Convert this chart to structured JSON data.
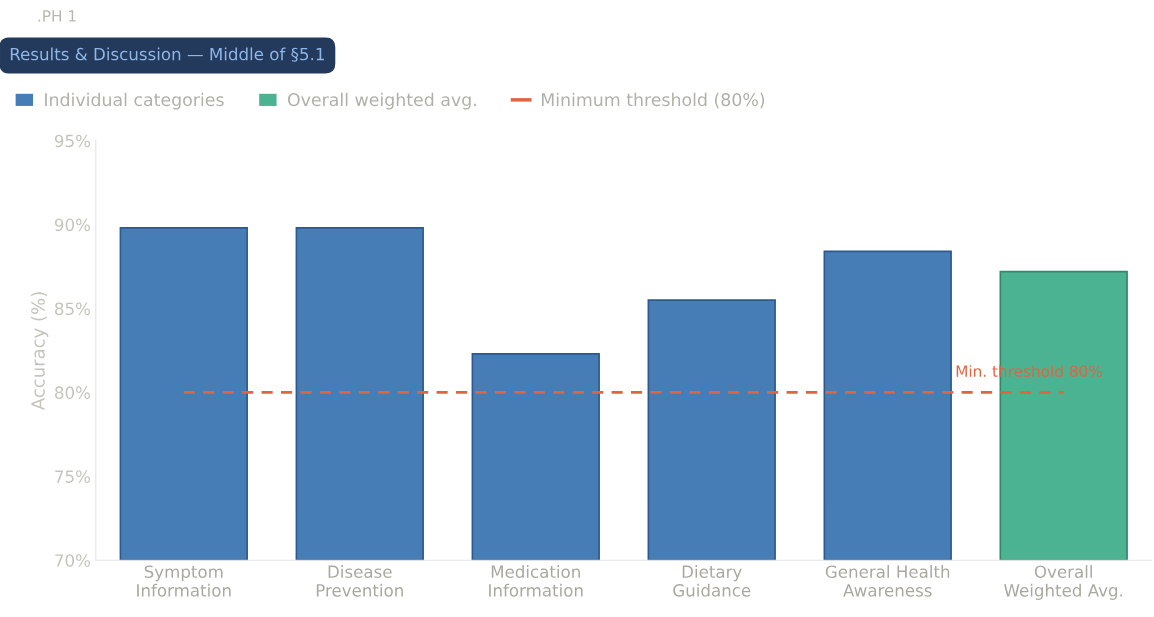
{
  "chart_data": {
    "type": "bar",
    "title": "Results & Discussion — Middle of §5.1",
    "annotations": [
      ".PH 1",
      {
        "text": "Min. threshold 80%",
        "x": "Overall\nWeighted Avg.",
        "y": 80
      }
    ],
    "ylabel": "Accuracy (%)",
    "categories": [
      "Symptom\nInformation",
      "Disease\nPrevention",
      "Medication\nInformation",
      "Dietary\nGuidance",
      "General Health\nAwareness",
      "Overall\nWeighted Avg."
    ],
    "series": [
      {
        "name": "Individual categories",
        "color": "#477db6",
        "values": [
          89.8,
          89.8,
          82.3,
          85.5,
          88.4,
          null
        ]
      },
      {
        "name": "Overall weighted avg.",
        "color": "#4bb391",
        "values": [
          null,
          null,
          null,
          null,
          null,
          87.2
        ]
      },
      {
        "name": "Minimum threshold (80%)",
        "type": "line",
        "color": "#e0643f",
        "line_style": "dashed",
        "values": [
          80,
          80,
          80,
          80,
          80,
          80
        ]
      }
    ],
    "ylim": [
      70,
      95
    ],
    "yticks": [
      {
        "value": 70,
        "label": "70%"
      },
      {
        "value": 75,
        "label": "75%"
      },
      {
        "value": 80,
        "label": "80%"
      },
      {
        "value": 85,
        "label": "85%"
      },
      {
        "value": 90,
        "label": "90%"
      },
      {
        "value": 95,
        "label": "95%"
      }
    ],
    "grid": false,
    "legend": "top left"
  }
}
